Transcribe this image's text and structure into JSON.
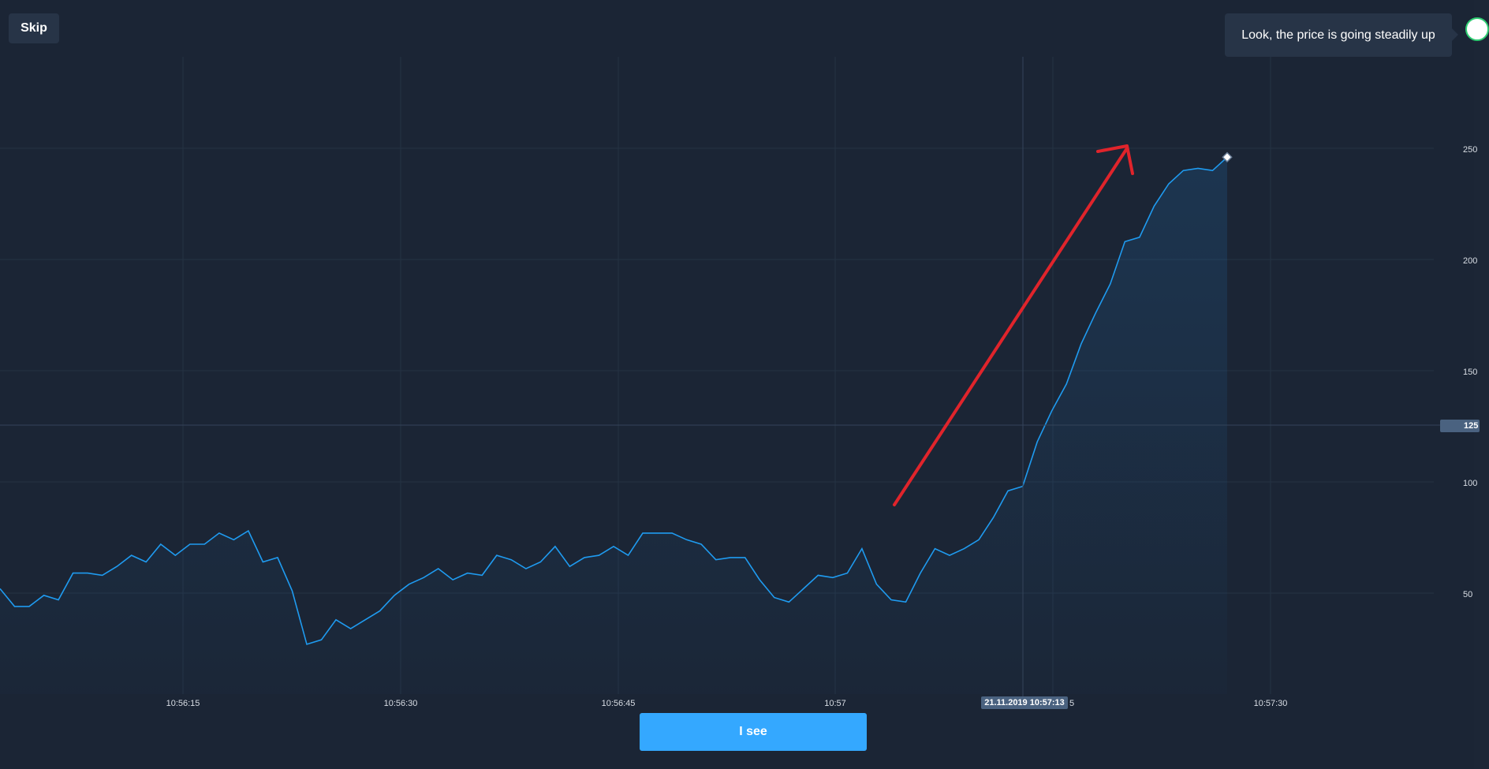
{
  "toolbar": {
    "skip_label": "Skip"
  },
  "tooltip": {
    "text": "Look, the price is going steadily up"
  },
  "cta": {
    "i_see_label": "I see"
  },
  "crosshair": {
    "date_label": "21.11.2019 10:57:13",
    "price_label": "125"
  },
  "colors": {
    "background": "#1b2535",
    "grid": "#243244",
    "line": "#1f9bf0",
    "annotation_arrow": "#e0242b",
    "button": "#34a8ff"
  },
  "chart_data": {
    "type": "line",
    "x_tick_labels": [
      "10:56:15",
      "10:56:30",
      "10:56:45",
      "10:57",
      "5",
      "10:57:30"
    ],
    "y_tick_labels": [
      "250",
      "200",
      "150",
      "100",
      "50"
    ],
    "grid": true,
    "series": [
      {
        "values": [
          52,
          44,
          44,
          49,
          47,
          59,
          59,
          58,
          62,
          67,
          64,
          72,
          67,
          72,
          72,
          77,
          74,
          78,
          64,
          66,
          51,
          27,
          29,
          38,
          34,
          38,
          42,
          49,
          54,
          57,
          61,
          56,
          59,
          58,
          67,
          65,
          61,
          64,
          71,
          62,
          66,
          67,
          71,
          67,
          77,
          77,
          77,
          74,
          72,
          65,
          66,
          66,
          56,
          48,
          46,
          52,
          58,
          57,
          59,
          70,
          54,
          47,
          46,
          59,
          70,
          67,
          70,
          74,
          84,
          96,
          98,
          118,
          132,
          144,
          162,
          176,
          189,
          208,
          210,
          224,
          234,
          240,
          241,
          240,
          246
        ]
      }
    ]
  }
}
